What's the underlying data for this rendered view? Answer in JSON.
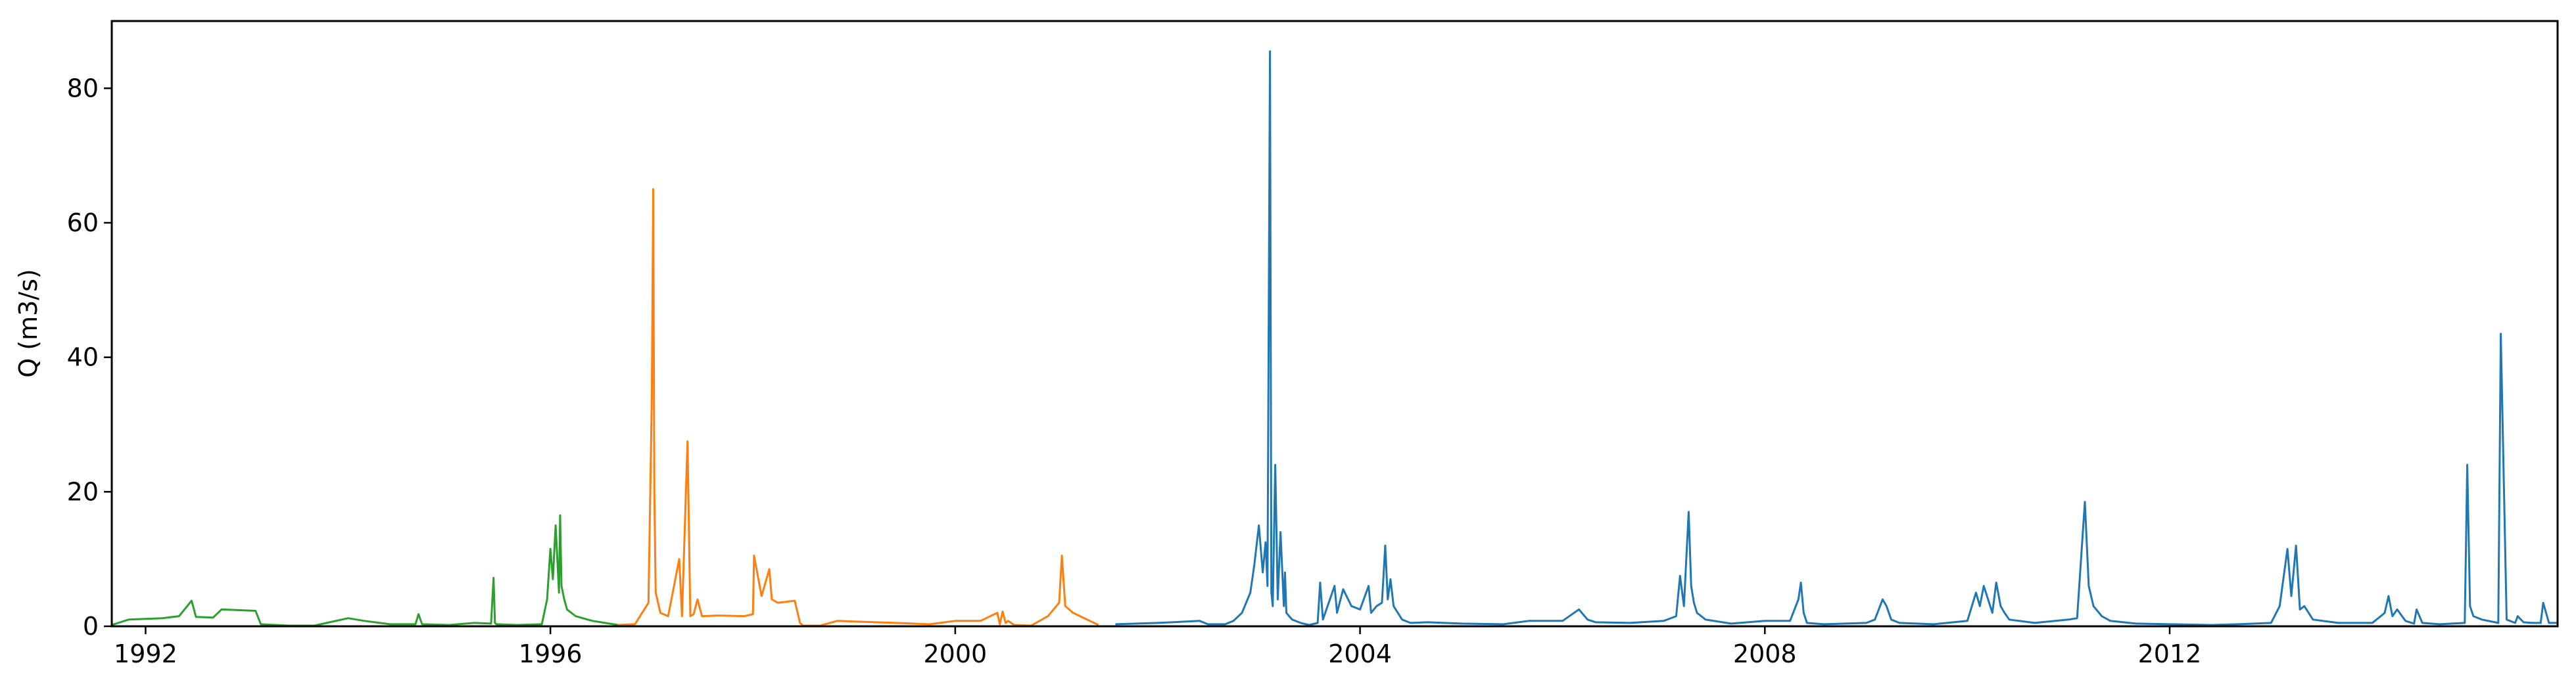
{
  "chart_data": {
    "type": "line",
    "title": "",
    "xlabel": "",
    "ylabel": "Q (m3/s)",
    "xlim": [
      "1991-09-01",
      "2015-11-01"
    ],
    "ylim": [
      0,
      90
    ],
    "x_ticks": [
      "1992",
      "1996",
      "2000",
      "2004",
      "2008",
      "2012"
    ],
    "y_ticks": [
      0,
      20,
      40,
      60,
      80
    ],
    "grid": false,
    "legend": "none",
    "series": [
      {
        "color": "#2ca02c",
        "x": [
          "1991-09-01",
          "1991-11-01",
          "1992-01-01",
          "1992-03-01",
          "1992-05-01",
          "1992-06-15",
          "1992-07-01",
          "1992-09-01",
          "1992-10-01",
          "1992-12-01",
          "1993-02-01",
          "1993-02-20",
          "1993-06-01",
          "1993-09-01",
          "1994-01-01",
          "1994-03-01",
          "1994-06-01",
          "1994-09-01",
          "1994-09-12",
          "1994-09-25",
          "1995-01-01",
          "1995-04-01",
          "1995-06-01",
          "1995-06-10",
          "1995-06-15",
          "1995-06-20",
          "1995-09-01",
          "1995-12-01",
          "1995-12-20",
          "1996-01-01",
          "1996-01-10",
          "1996-01-20",
          "1996-02-01",
          "1996-02-05",
          "1996-02-10",
          "1996-02-20",
          "1996-03-01",
          "1996-04-01",
          "1996-06-01",
          "1996-09-01"
        ],
        "values": [
          0.2,
          1.0,
          1.1,
          1.2,
          1.5,
          3.8,
          1.4,
          1.3,
          2.5,
          2.4,
          2.3,
          0.3,
          0.1,
          0.1,
          1.2,
          0.8,
          0.3,
          0.3,
          1.8,
          0.3,
          0.2,
          0.5,
          0.4,
          7.2,
          0.5,
          0.3,
          0.2,
          0.3,
          4.0,
          11.5,
          7.0,
          15.0,
          5.0,
          16.5,
          6.0,
          4.0,
          2.5,
          1.5,
          0.8,
          0.2
        ]
      },
      {
        "color": "#ff7f0e",
        "x": [
          "1996-09-01",
          "1996-11-01",
          "1996-12-20",
          "1997-01-01",
          "1997-01-06",
          "1997-01-10",
          "1997-01-15",
          "1997-02-01",
          "1997-03-01",
          "1997-04-10",
          "1997-04-20",
          "1997-05-10",
          "1997-05-20",
          "1997-06-01",
          "1997-06-15",
          "1997-07-01",
          "1997-09-01",
          "1997-12-01",
          "1998-01-01",
          "1998-01-05",
          "1998-02-01",
          "1998-03-01",
          "1998-03-10",
          "1998-04-01",
          "1998-06-01",
          "1998-06-20",
          "1998-07-01",
          "1998-09-01",
          "1998-11-01",
          "1999-01-01",
          "1999-06-01",
          "1999-10-01",
          "2000-01-01",
          "2000-04-01",
          "2000-06-01",
          "2000-06-10",
          "2000-06-20",
          "2000-07-01",
          "2000-07-10",
          "2000-08-01",
          "2000-10-01",
          "2000-12-01",
          "2001-01-10",
          "2001-01-20",
          "2001-02-01",
          "2001-03-01",
          "2001-05-01",
          "2001-06-01"
        ],
        "values": [
          0.2,
          0.3,
          3.5,
          34.0,
          65.0,
          20.0,
          5.0,
          2.0,
          1.5,
          10.0,
          1.5,
          27.5,
          1.5,
          1.8,
          4.0,
          1.5,
          1.6,
          1.5,
          1.8,
          10.5,
          4.5,
          8.5,
          4.0,
          3.5,
          3.8,
          0.5,
          0.1,
          0.1,
          0.8,
          0.7,
          0.5,
          0.3,
          0.8,
          0.8,
          2.0,
          0.3,
          2.2,
          0.5,
          0.8,
          0.2,
          0.1,
          1.5,
          3.5,
          10.5,
          3.0,
          2.0,
          0.8,
          0.2
        ]
      },
      {
        "color": "#1f77b4",
        "x": [
          "2001-08-01",
          "2002-01-01",
          "2002-06-01",
          "2002-07-01",
          "2002-09-01",
          "2002-10-01",
          "2002-11-01",
          "2002-12-01",
          "2002-12-15",
          "2003-01-01",
          "2003-01-15",
          "2003-01-25",
          "2003-02-01",
          "2003-02-10",
          "2003-02-15",
          "2003-02-20",
          "2003-03-01",
          "2003-03-10",
          "2003-03-20",
          "2003-04-01",
          "2003-04-05",
          "2003-04-10",
          "2003-04-20",
          "2003-05-01",
          "2003-06-01",
          "2003-07-01",
          "2003-08-01",
          "2003-08-10",
          "2003-08-20",
          "2003-10-01",
          "2003-10-10",
          "2003-11-01",
          "2003-12-01",
          "2004-01-01",
          "2004-02-01",
          "2004-02-10",
          "2004-03-01",
          "2004-03-20",
          "2004-04-01",
          "2004-04-10",
          "2004-04-20",
          "2004-05-01",
          "2004-06-01",
          "2004-07-01",
          "2004-09-01",
          "2005-01-01",
          "2005-06-01",
          "2005-09-01",
          "2006-01-01",
          "2006-03-01",
          "2006-04-01",
          "2006-05-01",
          "2006-09-01",
          "2007-01-01",
          "2007-02-15",
          "2007-03-01",
          "2007-03-15",
          "2007-04-01",
          "2007-04-10",
          "2007-04-20",
          "2007-05-01",
          "2007-06-01",
          "2007-09-01",
          "2008-01-01",
          "2008-04-01",
          "2008-05-01",
          "2008-05-10",
          "2008-05-20",
          "2008-06-01",
          "2008-08-01",
          "2009-01-01",
          "2009-02-01",
          "2009-03-01",
          "2009-03-15",
          "2009-04-01",
          "2009-05-01",
          "2009-09-01",
          "2010-01-01",
          "2010-02-01",
          "2010-02-15",
          "2010-03-01",
          "2010-04-01",
          "2010-04-15",
          "2010-05-01",
          "2010-05-15",
          "2010-06-01",
          "2010-09-01",
          "2011-01-01",
          "2011-02-01",
          "2011-03-01",
          "2011-03-15",
          "2011-04-01",
          "2011-05-01",
          "2011-06-01",
          "2011-09-01",
          "2012-01-01",
          "2012-06-01",
          "2012-09-01",
          "2013-01-01",
          "2013-02-01",
          "2013-03-01",
          "2013-03-15",
          "2013-04-01",
          "2013-04-15",
          "2013-05-01",
          "2013-06-01",
          "2013-09-01",
          "2014-01-01",
          "2014-02-01",
          "2014-02-15",
          "2014-03-01",
          "2014-03-15",
          "2014-04-01",
          "2014-05-01",
          "2014-06-01",
          "2014-06-10",
          "2014-07-01",
          "2014-09-01",
          "2014-12-01",
          "2014-12-10",
          "2014-12-20",
          "2015-01-01",
          "2015-02-01",
          "2015-04-01",
          "2015-04-10",
          "2015-05-01",
          "2015-06-01",
          "2015-06-10",
          "2015-07-01",
          "2015-08-01",
          "2015-09-01",
          "2015-09-10",
          "2015-10-01",
          "2015-11-01"
        ],
        "values": [
          0.3,
          0.5,
          0.8,
          0.3,
          0.3,
          0.8,
          2.0,
          5.0,
          9.0,
          15.0,
          8.0,
          12.5,
          6.0,
          85.5,
          5.0,
          3.0,
          24.0,
          4.0,
          14.0,
          3.0,
          8.0,
          2.0,
          1.5,
          1.0,
          0.5,
          0.2,
          0.5,
          6.5,
          1.0,
          6.0,
          2.0,
          5.5,
          3.0,
          2.5,
          6.0,
          2.0,
          3.0,
          3.5,
          12.0,
          4.0,
          7.0,
          3.0,
          1.0,
          0.5,
          0.6,
          0.4,
          0.3,
          0.8,
          0.8,
          2.5,
          1.0,
          0.6,
          0.5,
          0.8,
          1.5,
          7.5,
          3.0,
          17.0,
          6.0,
          3.5,
          2.0,
          1.0,
          0.4,
          0.8,
          0.8,
          4.0,
          6.5,
          2.0,
          0.5,
          0.3,
          0.5,
          1.0,
          4.0,
          3.0,
          1.0,
          0.5,
          0.3,
          0.8,
          5.0,
          3.0,
          6.0,
          2.0,
          6.5,
          3.0,
          2.0,
          1.0,
          0.5,
          1.0,
          1.2,
          18.5,
          6.0,
          3.0,
          1.5,
          0.8,
          0.4,
          0.3,
          0.2,
          0.3,
          0.5,
          3.0,
          11.5,
          4.5,
          12.0,
          2.5,
          3.0,
          1.0,
          0.5,
          0.5,
          1.5,
          2.0,
          4.5,
          1.5,
          2.5,
          0.8,
          0.4,
          2.5,
          0.5,
          0.3,
          0.5,
          24.0,
          3.0,
          1.5,
          1.0,
          0.5,
          43.5,
          1.0,
          0.5,
          1.5,
          0.6,
          0.5,
          0.5,
          3.5,
          0.5,
          0.5
        ]
      }
    ]
  }
}
